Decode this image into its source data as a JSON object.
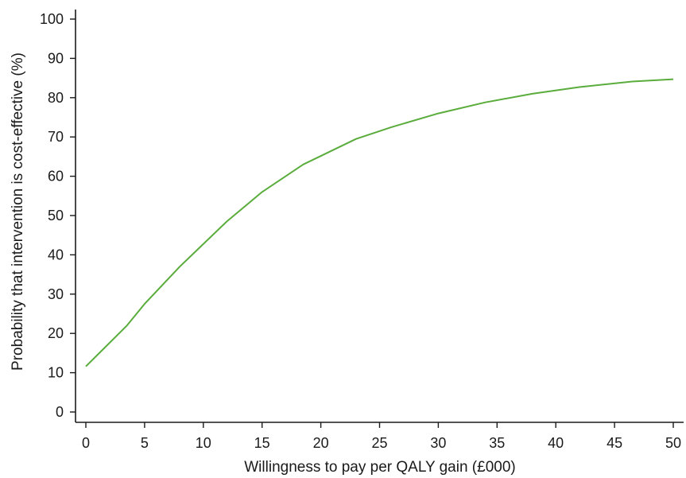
{
  "chart_data": {
    "type": "line",
    "title": "",
    "xlabel": "Willingness to pay per QALY gain (£000)",
    "ylabel": "Probability that intervention is cost-effective (%)",
    "xlim": [
      0,
      50
    ],
    "ylim": [
      0,
      100
    ],
    "x_ticks": [
      0,
      5,
      10,
      15,
      20,
      25,
      30,
      35,
      40,
      45,
      50
    ],
    "y_ticks": [
      0,
      10,
      20,
      30,
      40,
      50,
      60,
      70,
      80,
      90,
      100
    ],
    "grid": false,
    "legend": "none",
    "series": [
      {
        "color": "#5aac3c",
        "x": [
          0,
          3.5,
          5,
          8,
          12,
          15,
          18.5,
          23,
          26,
          30,
          34,
          38,
          42,
          46.5,
          50
        ],
        "y": [
          11.6,
          22.0,
          27.5,
          37.0,
          48.5,
          56.0,
          63.0,
          69.5,
          72.5,
          76.0,
          78.8,
          81.0,
          82.7,
          84.1,
          84.7
        ]
      }
    ]
  }
}
